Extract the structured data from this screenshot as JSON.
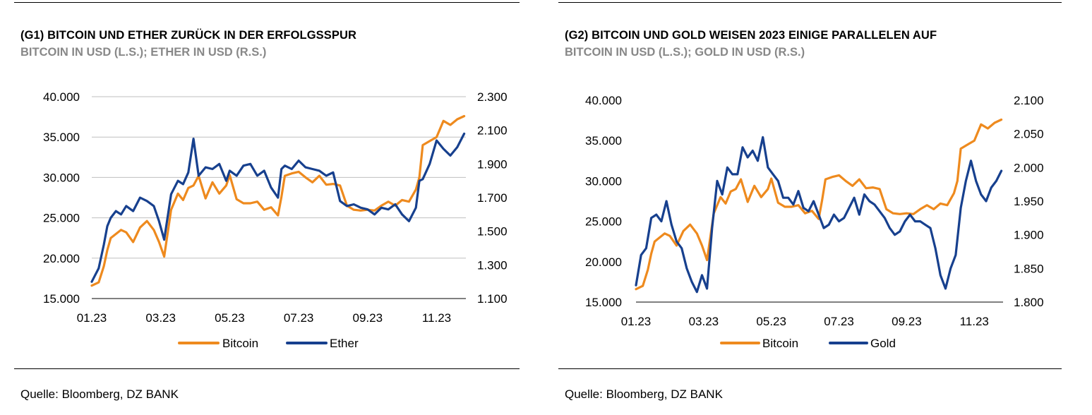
{
  "colors": {
    "bitcoin": "#EE8A1E",
    "ether": "#17408E",
    "gold": "#17408E",
    "grid": "#BFBFBF"
  },
  "charts": [
    {
      "title": "(G1) BITCOIN UND ETHER ZURÜCK IN DER ERFOLGSSPUR",
      "subtitle": "BITCOIN IN USD (L.S.); ETHER IN USD (R.S.)",
      "source": "Quelle: Bloomberg, DZ BANK",
      "legend": [
        "Bitcoin",
        "Ether"
      ]
    },
    {
      "title": "(G2) BITCOIN UND GOLD WEISEN 2023 EINIGE PARALLELEN AUF",
      "subtitle": "BITCOIN IN USD (L.S.); GOLD IN USD (R.S.)",
      "source": "Quelle: Bloomberg, DZ BANK",
      "legend": [
        "Bitcoin",
        "Gold"
      ]
    }
  ],
  "chart_data": [
    {
      "type": "line",
      "title": "(G1) BITCOIN UND ETHER ZURÜCK IN DER ERFOLGSSPUR",
      "x_ticks": [
        "01.23",
        "03.23",
        "05.23",
        "07.23",
        "09.23",
        "11.23"
      ],
      "x_range": [
        0,
        10.85
      ],
      "y_left": {
        "range": [
          15000,
          40000
        ],
        "ticks": [
          "15.000",
          "20.000",
          "25.000",
          "30.000",
          "35.000",
          "40.000"
        ],
        "values": [
          15000,
          20000,
          25000,
          30000,
          35000,
          40000
        ]
      },
      "y_right": {
        "range": [
          1100,
          2300
        ],
        "ticks": [
          "1.100",
          "1.300",
          "1.500",
          "1.700",
          "1.900",
          "2.100",
          "2.300"
        ],
        "values": [
          1100,
          1300,
          1500,
          1700,
          1900,
          2100,
          2300
        ]
      },
      "grid": true,
      "legend_position": "bottom",
      "series": [
        {
          "name": "Bitcoin",
          "axis": "left",
          "x": [
            0,
            0.2,
            0.35,
            0.45,
            0.55,
            0.7,
            0.85,
            1.0,
            1.2,
            1.4,
            1.6,
            1.8,
            1.95,
            2.1,
            2.3,
            2.5,
            2.65,
            2.8,
            2.95,
            3.1,
            3.3,
            3.5,
            3.7,
            3.9,
            4.0,
            4.2,
            4.4,
            4.6,
            4.8,
            5.0,
            5.2,
            5.4,
            5.5,
            5.6,
            5.8,
            6.0,
            6.2,
            6.4,
            6.6,
            6.8,
            7.0,
            7.2,
            7.4,
            7.6,
            7.8,
            8.0,
            8.2,
            8.4,
            8.6,
            8.8,
            9.0,
            9.2,
            9.4,
            9.5,
            9.6,
            9.8,
            10.0,
            10.2,
            10.4,
            10.6,
            10.8
          ],
          "values": [
            16600,
            17000,
            19000,
            21000,
            22500,
            23000,
            23500,
            23200,
            22000,
            23800,
            24600,
            23500,
            22000,
            20200,
            26000,
            28000,
            27200,
            28700,
            29000,
            30200,
            27400,
            29400,
            28000,
            29000,
            30300,
            27300,
            26800,
            26800,
            27000,
            26000,
            26300,
            25300,
            27600,
            30200,
            30500,
            30700,
            30000,
            29400,
            30200,
            29100,
            29200,
            29000,
            26500,
            26000,
            25900,
            26000,
            25900,
            26500,
            27000,
            26500,
            27200,
            27000,
            28500,
            30000,
            34000,
            34500,
            35000,
            37000,
            36500,
            37200,
            37600
          ]
        },
        {
          "name": "Ether",
          "axis": "right",
          "x": [
            0,
            0.2,
            0.35,
            0.45,
            0.55,
            0.7,
            0.85,
            1.0,
            1.2,
            1.4,
            1.6,
            1.8,
            1.95,
            2.1,
            2.3,
            2.5,
            2.65,
            2.8,
            2.95,
            3.1,
            3.3,
            3.5,
            3.7,
            3.9,
            4.0,
            4.2,
            4.4,
            4.6,
            4.8,
            5.0,
            5.2,
            5.4,
            5.5,
            5.6,
            5.8,
            6.0,
            6.2,
            6.4,
            6.6,
            6.8,
            7.0,
            7.2,
            7.4,
            7.6,
            7.8,
            8.0,
            8.2,
            8.4,
            8.6,
            8.8,
            9.0,
            9.2,
            9.4,
            9.5,
            9.6,
            9.8,
            10.0,
            10.2,
            10.4,
            10.6,
            10.8
          ],
          "values": [
            1200,
            1280,
            1420,
            1530,
            1580,
            1620,
            1600,
            1650,
            1620,
            1700,
            1680,
            1650,
            1560,
            1450,
            1720,
            1800,
            1780,
            1850,
            2050,
            1830,
            1880,
            1870,
            1900,
            1800,
            1860,
            1830,
            1890,
            1900,
            1830,
            1860,
            1760,
            1700,
            1870,
            1890,
            1870,
            1920,
            1880,
            1870,
            1860,
            1830,
            1850,
            1680,
            1650,
            1660,
            1640,
            1630,
            1600,
            1640,
            1630,
            1660,
            1600,
            1560,
            1640,
            1800,
            1810,
            1900,
            2040,
            1990,
            1950,
            2000,
            2080
          ]
        }
      ]
    },
    {
      "type": "line",
      "title": "(G2) BITCOIN UND GOLD WEISEN 2023 EINIGE PARALLELEN AUF",
      "x_ticks": [
        "01.23",
        "03.23",
        "05.23",
        "07.23",
        "09.23",
        "11.23"
      ],
      "x_range": [
        0,
        10.85
      ],
      "y_left": {
        "range": [
          15000,
          40000
        ],
        "ticks": [
          "15.000",
          "20.000",
          "25.000",
          "30.000",
          "35.000",
          "40.000"
        ],
        "values": [
          15000,
          20000,
          25000,
          30000,
          35000,
          40000
        ]
      },
      "y_right": {
        "range": [
          1800,
          2100
        ],
        "ticks": [
          "1.800",
          "1.850",
          "1.900",
          "1.950",
          "2.000",
          "2.050",
          "2.100"
        ],
        "values": [
          1800,
          1850,
          1900,
          1950,
          2000,
          2050,
          2100
        ]
      },
      "grid": false,
      "legend_position": "bottom",
      "series": [
        {
          "name": "Bitcoin",
          "axis": "left",
          "x": [
            0,
            0.2,
            0.35,
            0.45,
            0.55,
            0.7,
            0.85,
            1.0,
            1.2,
            1.4,
            1.6,
            1.8,
            1.95,
            2.1,
            2.3,
            2.5,
            2.65,
            2.8,
            2.95,
            3.1,
            3.3,
            3.5,
            3.7,
            3.9,
            4.0,
            4.2,
            4.4,
            4.6,
            4.8,
            5.0,
            5.2,
            5.4,
            5.5,
            5.6,
            5.8,
            6.0,
            6.2,
            6.4,
            6.6,
            6.8,
            7.0,
            7.2,
            7.4,
            7.6,
            7.8,
            8.0,
            8.2,
            8.4,
            8.6,
            8.8,
            9.0,
            9.2,
            9.4,
            9.5,
            9.6,
            9.8,
            10.0,
            10.2,
            10.4,
            10.6,
            10.8
          ],
          "values": [
            16600,
            17000,
            19000,
            21000,
            22500,
            23000,
            23500,
            23200,
            22000,
            23800,
            24600,
            23500,
            22000,
            20200,
            26000,
            28000,
            27200,
            28700,
            29000,
            30200,
            27400,
            29400,
            28000,
            29000,
            30300,
            27300,
            26800,
            26800,
            27000,
            26000,
            26300,
            25300,
            27600,
            30200,
            30500,
            30700,
            30000,
            29400,
            30200,
            29100,
            29200,
            29000,
            26500,
            26000,
            25900,
            26000,
            25900,
            26500,
            27000,
            26500,
            27200,
            27000,
            28500,
            30000,
            34000,
            34500,
            35000,
            37000,
            36500,
            37200,
            37600
          ]
        },
        {
          "name": "Gold",
          "axis": "right",
          "x": [
            0,
            0.15,
            0.3,
            0.45,
            0.6,
            0.75,
            0.9,
            1.05,
            1.2,
            1.35,
            1.5,
            1.65,
            1.8,
            1.95,
            2.1,
            2.25,
            2.4,
            2.55,
            2.7,
            2.85,
            3.0,
            3.15,
            3.3,
            3.45,
            3.6,
            3.75,
            3.9,
            4.05,
            4.2,
            4.35,
            4.5,
            4.65,
            4.8,
            4.95,
            5.1,
            5.25,
            5.4,
            5.55,
            5.7,
            5.85,
            6.0,
            6.15,
            6.3,
            6.45,
            6.6,
            6.75,
            6.9,
            7.05,
            7.2,
            7.35,
            7.5,
            7.65,
            7.8,
            7.95,
            8.1,
            8.25,
            8.4,
            8.55,
            8.7,
            8.85,
            9.0,
            9.15,
            9.3,
            9.45,
            9.6,
            9.75,
            9.9,
            10.05,
            10.2,
            10.35,
            10.5,
            10.65,
            10.8
          ],
          "values": [
            1825,
            1870,
            1880,
            1925,
            1930,
            1920,
            1950,
            1915,
            1890,
            1880,
            1850,
            1830,
            1815,
            1840,
            1820,
            1910,
            1980,
            1960,
            2000,
            1990,
            1990,
            2030,
            2015,
            2025,
            2010,
            2045,
            2000,
            1990,
            1980,
            1955,
            1955,
            1945,
            1965,
            1940,
            1935,
            1950,
            1930,
            1910,
            1915,
            1930,
            1920,
            1925,
            1940,
            1955,
            1930,
            1960,
            1950,
            1945,
            1935,
            1925,
            1910,
            1900,
            1905,
            1920,
            1930,
            1920,
            1920,
            1915,
            1910,
            1880,
            1840,
            1820,
            1850,
            1870,
            1940,
            1980,
            2010,
            1980,
            1960,
            1950,
            1970,
            1980,
            1995
          ]
        }
      ]
    }
  ]
}
